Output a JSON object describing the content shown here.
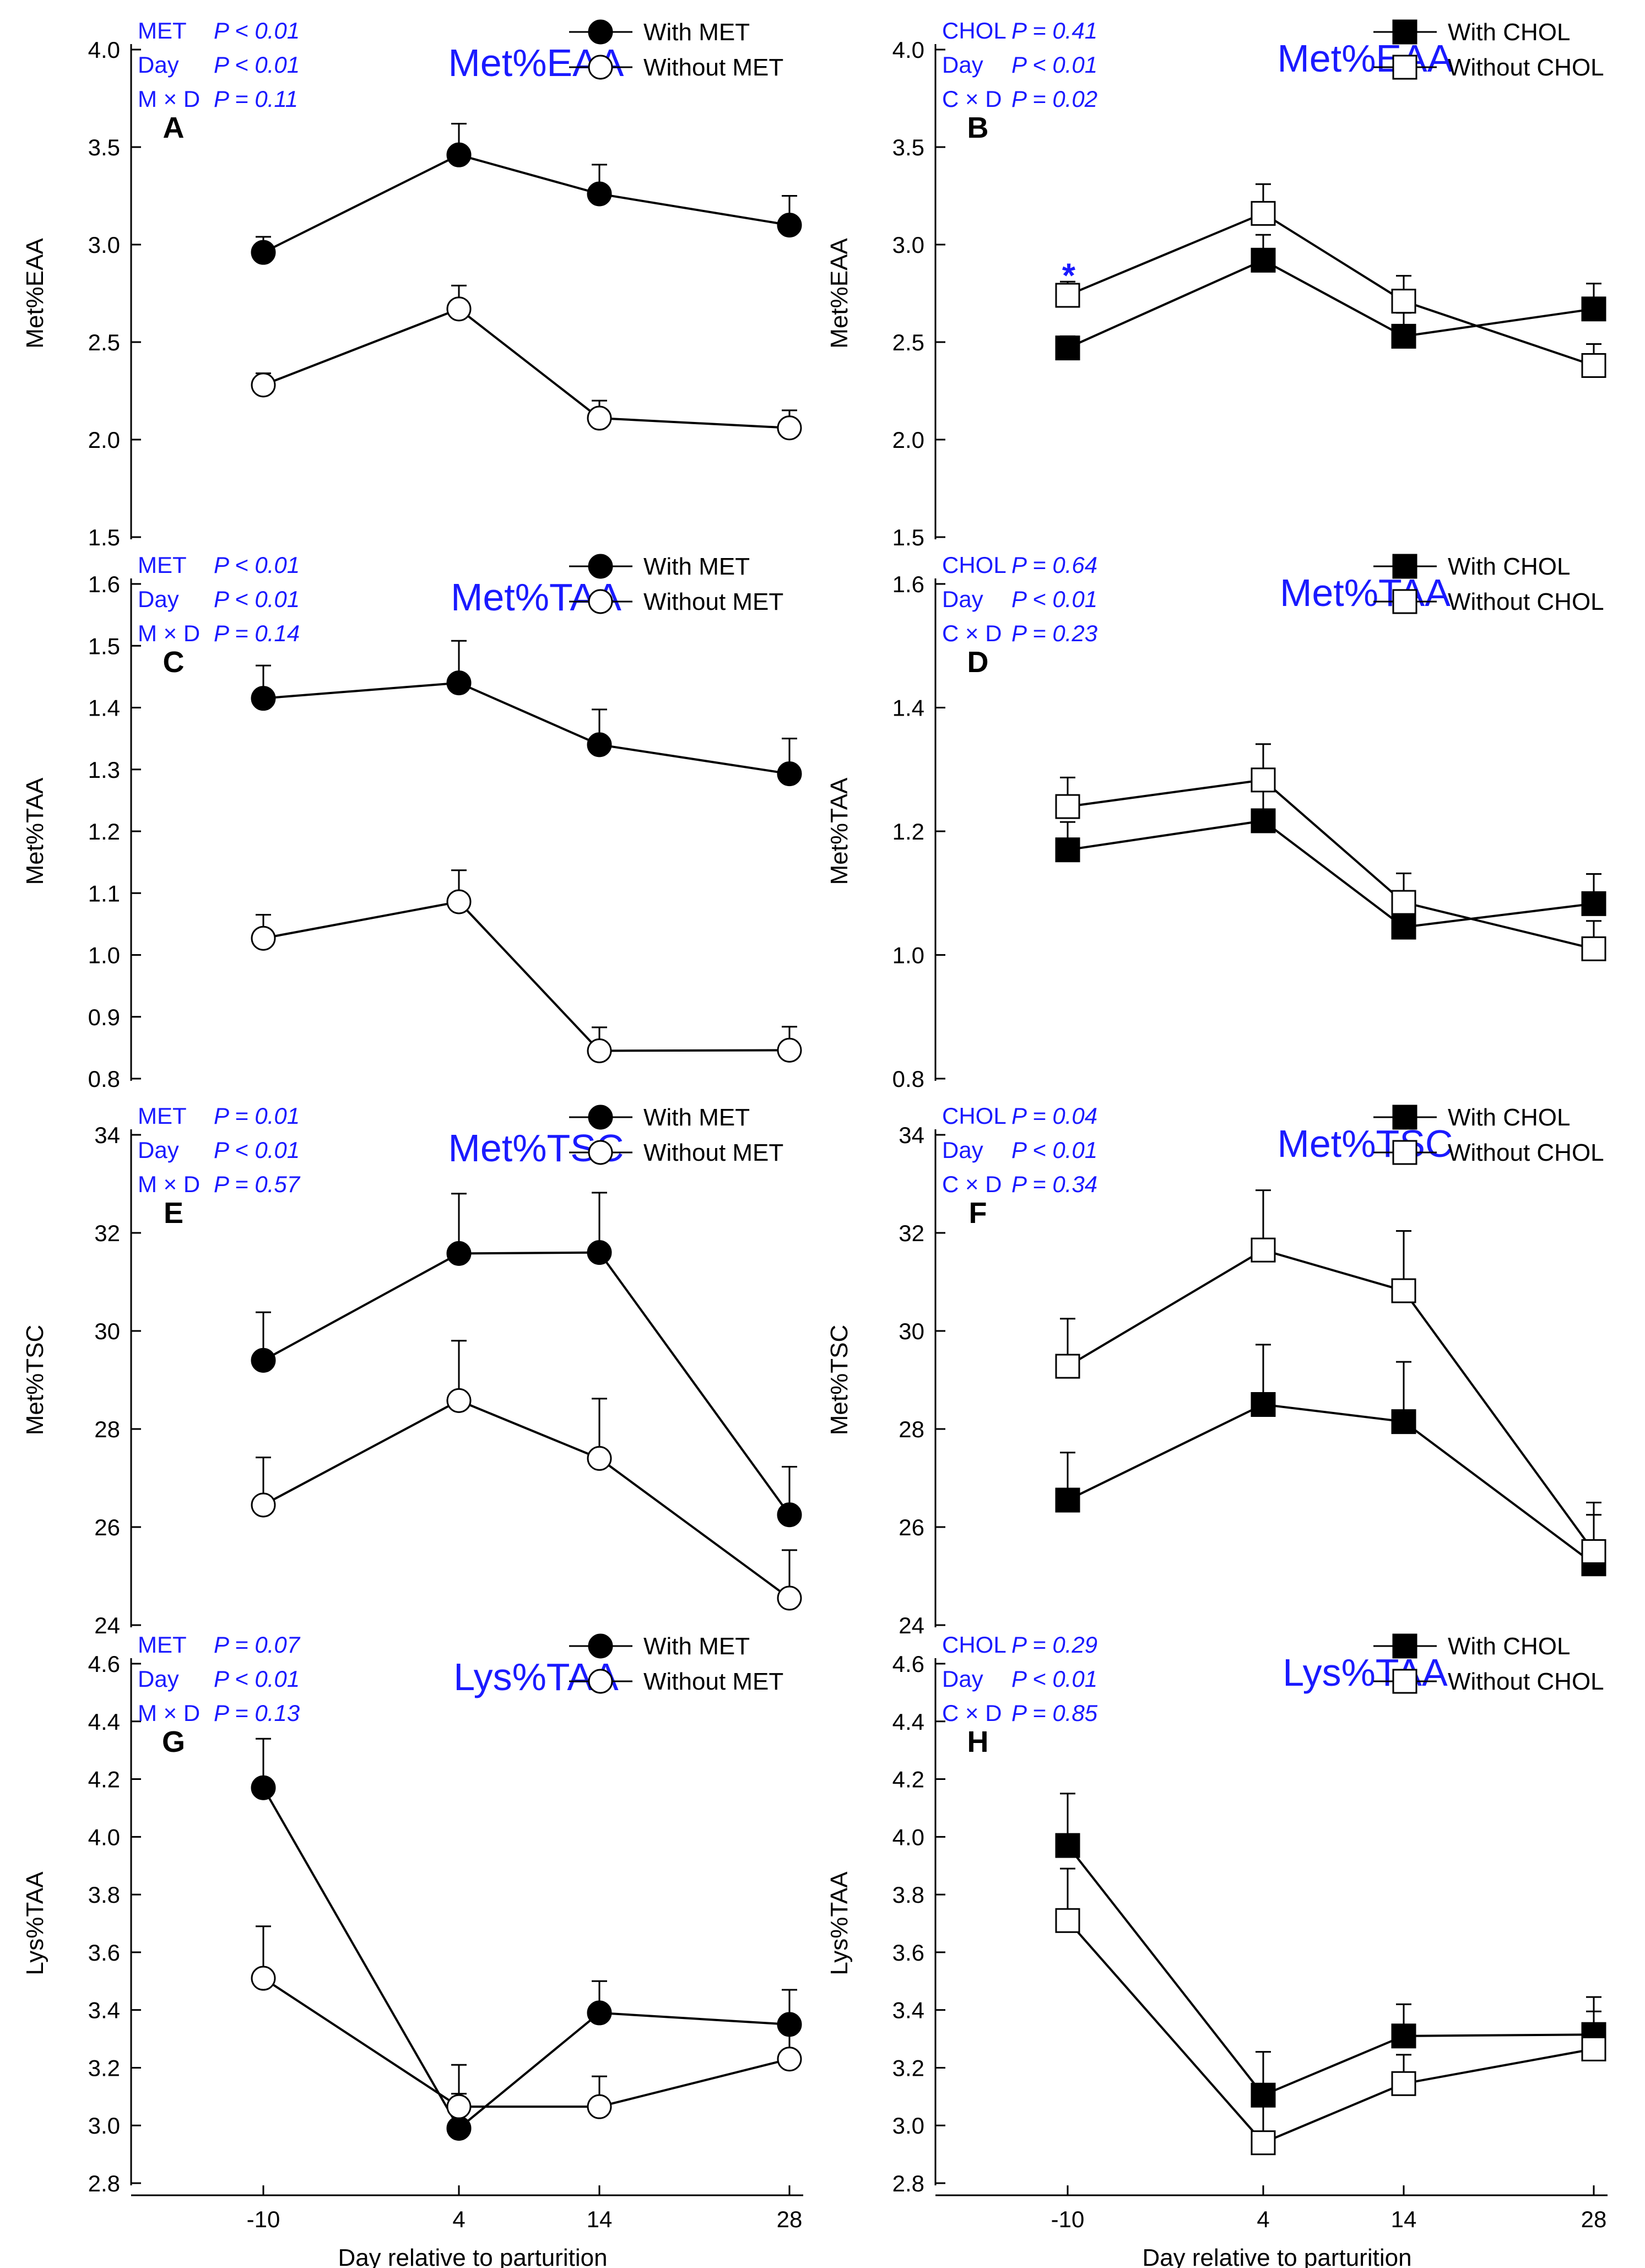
{
  "figure": {
    "x_axis_title": "Day relative to parturition",
    "colors": {
      "annotation": "#1a1aff",
      "ink": "#000000",
      "open_fill": "#ffffff"
    }
  },
  "chart_data": [
    {
      "id": "A",
      "type": "line",
      "title": "Met%EAA",
      "ylabel": "Met%EAA",
      "x_categories": [
        "-10",
        "4",
        "14",
        "28"
      ],
      "xlabel": "",
      "ylim": [
        1.5,
        4.0
      ],
      "yticks": [
        "1.5",
        "2.0",
        "2.5",
        "3.0",
        "3.5",
        "4.0"
      ],
      "marker": "circle",
      "stats": [
        {
          "effect": "MET",
          "p": "P < 0.01"
        },
        {
          "effect": "Day",
          "p": "P < 0.01"
        },
        {
          "effect": "M × D",
          "p": "P = 0.11"
        }
      ],
      "series": [
        {
          "name": "With MET",
          "filled": true,
          "values": [
            2.96,
            3.46,
            3.26,
            3.1
          ],
          "errors": [
            0.08,
            0.16,
            0.15,
            0.15
          ]
        },
        {
          "name": "Without MET",
          "filled": false,
          "values": [
            2.28,
            2.67,
            2.11,
            2.06
          ],
          "errors": [
            0.06,
            0.12,
            0.09,
            0.09
          ]
        }
      ],
      "star": null
    },
    {
      "id": "B",
      "type": "line",
      "title": "Met%EAA",
      "ylabel": "Met%EAA",
      "x_categories": [
        "-10",
        "4",
        "14",
        "28"
      ],
      "xlabel": "",
      "ylim": [
        1.5,
        4.0
      ],
      "yticks": [
        "1.5",
        "2.0",
        "2.5",
        "3.0",
        "3.5",
        "4.0"
      ],
      "marker": "square",
      "stats": [
        {
          "effect": "CHOL",
          "p": "P = 0.41"
        },
        {
          "effect": "Day",
          "p": "P < 0.01"
        },
        {
          "effect": "C × D",
          "p": "P = 0.02"
        }
      ],
      "series": [
        {
          "name": "With CHOL",
          "filled": true,
          "values": [
            2.47,
            2.92,
            2.53,
            2.67
          ],
          "errors": [
            0.06,
            0.13,
            0.12,
            0.13
          ]
        },
        {
          "name": "Without CHOL",
          "filled": false,
          "values": [
            2.74,
            3.16,
            2.71,
            2.38
          ],
          "errors": [
            0.07,
            0.15,
            0.13,
            0.11
          ]
        }
      ],
      "star": {
        "text": "*",
        "category_index": 0,
        "value": 2.86
      }
    },
    {
      "id": "C",
      "type": "line",
      "title": "Met%TAA",
      "ylabel": "Met%TAA",
      "x_categories": [
        "-10",
        "4",
        "14",
        "28"
      ],
      "xlabel": "",
      "ylim": [
        0.8,
        1.6
      ],
      "yticks": [
        "0.8",
        "0.9",
        "1.0",
        "1.1",
        "1.2",
        "1.3",
        "1.4",
        "1.5",
        "1.6"
      ],
      "marker": "circle",
      "stats": [
        {
          "effect": "MET",
          "p": "P < 0.01"
        },
        {
          "effect": "Day",
          "p": "P < 0.01"
        },
        {
          "effect": "M × D",
          "p": "P = 0.14"
        }
      ],
      "series": [
        {
          "name": "With MET",
          "filled": true,
          "values": [
            1.415,
            1.44,
            1.34,
            1.293
          ],
          "errors": [
            0.053,
            0.068,
            0.057,
            0.057
          ]
        },
        {
          "name": "Without MET",
          "filled": false,
          "values": [
            1.027,
            1.086,
            0.845,
            0.846
          ],
          "errors": [
            0.038,
            0.051,
            0.038,
            0.038
          ]
        }
      ],
      "star": null
    },
    {
      "id": "D",
      "type": "line",
      "title": "Met%TAA",
      "ylabel": "Met%TAA",
      "x_categories": [
        "-10",
        "4",
        "14",
        "28"
      ],
      "xlabel": "",
      "ylim": [
        0.8,
        1.6
      ],
      "yticks": [
        "0.8",
        "1.0",
        "1.2",
        "1.4",
        "1.6"
      ],
      "marker": "square",
      "stats": [
        {
          "effect": "CHOL",
          "p": "P = 0.64"
        },
        {
          "effect": "Day",
          "p": "P < 0.01"
        },
        {
          "effect": "C × D",
          "p": "P = 0.23"
        }
      ],
      "series": [
        {
          "name": "With CHOL",
          "filled": true,
          "values": [
            1.17,
            1.217,
            1.045,
            1.083
          ],
          "errors": [
            0.045,
            0.058,
            0.045,
            0.048
          ]
        },
        {
          "name": "Without CHOL",
          "filled": false,
          "values": [
            1.24,
            1.283,
            1.085,
            1.01
          ],
          "errors": [
            0.047,
            0.058,
            0.047,
            0.045
          ]
        }
      ],
      "star": null
    },
    {
      "id": "E",
      "type": "line",
      "title": "Met%TSC",
      "ylabel": "Met%TSC",
      "x_categories": [
        "-10",
        "4",
        "14",
        "28"
      ],
      "xlabel": "",
      "ylim": [
        24,
        34
      ],
      "yticks": [
        "24",
        "26",
        "28",
        "30",
        "32",
        "34"
      ],
      "marker": "circle",
      "stats": [
        {
          "effect": "MET",
          "p": "P = 0.01"
        },
        {
          "effect": "Day",
          "p": "P < 0.01"
        },
        {
          "effect": "M × D",
          "p": "P = 0.57"
        }
      ],
      "series": [
        {
          "name": "With MET",
          "filled": true,
          "values": [
            29.4,
            31.58,
            31.6,
            26.25
          ],
          "errors": [
            0.98,
            1.22,
            1.22,
            0.98
          ]
        },
        {
          "name": "Without MET",
          "filled": false,
          "values": [
            26.45,
            28.58,
            27.4,
            24.55
          ],
          "errors": [
            0.97,
            1.22,
            1.22,
            0.98
          ]
        }
      ],
      "star": null
    },
    {
      "id": "F",
      "type": "line",
      "title": "Met%TSC",
      "ylabel": "Met%TSC",
      "x_categories": [
        "-10",
        "4",
        "14",
        "28"
      ],
      "xlabel": "",
      "ylim": [
        24,
        34
      ],
      "yticks": [
        "24",
        "26",
        "28",
        "30",
        "32",
        "34"
      ],
      "marker": "square",
      "stats": [
        {
          "effect": "CHOL",
          "p": "P = 0.04"
        },
        {
          "effect": "Day",
          "p": "P < 0.01"
        },
        {
          "effect": "C × D",
          "p": "P = 0.34"
        }
      ],
      "series": [
        {
          "name": "With CHOL",
          "filled": true,
          "values": [
            26.55,
            28.5,
            28.15,
            25.25
          ],
          "errors": [
            0.97,
            1.22,
            1.22,
            1.0
          ]
        },
        {
          "name": "Without CHOL",
          "filled": false,
          "values": [
            29.28,
            31.65,
            30.82,
            25.5
          ],
          "errors": [
            0.97,
            1.22,
            1.22,
            1.0
          ]
        }
      ],
      "star": null
    },
    {
      "id": "G",
      "type": "line",
      "title": "Lys%TAA",
      "ylabel": "Lys%TAA",
      "x_categories": [
        "-10",
        "4",
        "14",
        "28"
      ],
      "xlabel": "Day relative to parturition",
      "ylim": [
        2.8,
        4.6
      ],
      "yticks": [
        "2.8",
        "3.0",
        "3.2",
        "3.4",
        "3.6",
        "3.8",
        "4.0",
        "4.2",
        "4.4",
        "4.6"
      ],
      "marker": "circle",
      "stats": [
        {
          "effect": "MET",
          "p": "P = 0.07"
        },
        {
          "effect": "Day",
          "p": "P < 0.01"
        },
        {
          "effect": "M × D",
          "p": "P = 0.13"
        }
      ],
      "series": [
        {
          "name": "With MET",
          "filled": true,
          "values": [
            4.17,
            2.99,
            3.39,
            3.35
          ],
          "errors": [
            0.17,
            0.12,
            0.11,
            0.12
          ]
        },
        {
          "name": "Without MET",
          "filled": false,
          "values": [
            3.51,
            3.065,
            3.065,
            3.23
          ],
          "errors": [
            0.18,
            0.145,
            0.105,
            0.11
          ]
        }
      ],
      "star": null
    },
    {
      "id": "H",
      "type": "line",
      "title": "Lys%TAA",
      "ylabel": "Lys%TAA",
      "x_categories": [
        "-10",
        "4",
        "14",
        "28"
      ],
      "xlabel": "Day relative to parturition",
      "ylim": [
        2.8,
        4.6
      ],
      "yticks": [
        "2.8",
        "3.0",
        "3.2",
        "3.4",
        "3.6",
        "3.8",
        "4.0",
        "4.2",
        "4.4",
        "4.6"
      ],
      "marker": "square",
      "stats": [
        {
          "effect": "CHOL",
          "p": "P = 0.29"
        },
        {
          "effect": "Day",
          "p": "P < 0.01"
        },
        {
          "effect": "C × D",
          "p": "P = 0.85"
        }
      ],
      "series": [
        {
          "name": "With CHOL",
          "filled": true,
          "values": [
            3.97,
            3.105,
            3.31,
            3.315
          ],
          "errors": [
            0.18,
            0.15,
            0.11,
            0.13
          ]
        },
        {
          "name": "Without CHOL",
          "filled": false,
          "values": [
            3.71,
            2.94,
            3.145,
            3.265
          ],
          "errors": [
            0.18,
            0.16,
            0.1,
            0.13
          ]
        }
      ],
      "star": null
    }
  ]
}
